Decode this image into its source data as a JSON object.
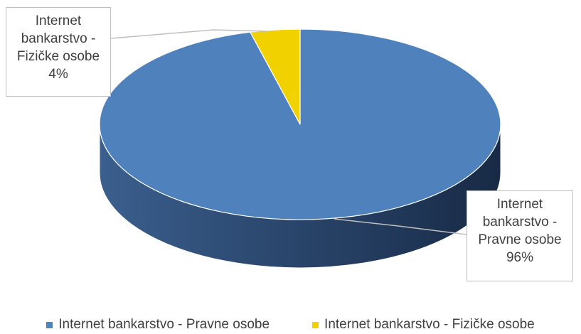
{
  "chart_data": {
    "type": "pie",
    "style": "3d",
    "categories": [
      "Internet bankarstvo - Pravne osobe",
      "Internet bankarstvo - Fizičke osobe"
    ],
    "values": [
      96,
      4
    ],
    "colors": [
      "#4F81BD",
      "#F2D100"
    ],
    "data_labels": [
      {
        "line1": "Internet",
        "line2": "bankarstvo -",
        "line3": "Pravne osobe",
        "pct": "96%"
      },
      {
        "line1": "Internet",
        "line2": "bankarstvo -",
        "line3": "Fizičke osobe",
        "pct": "4%"
      }
    ],
    "legend": {
      "position": "bottom",
      "items": [
        "Internet bankarstvo - Pravne osobe",
        "Internet bankarstvo - Fizičke osobe"
      ]
    }
  }
}
